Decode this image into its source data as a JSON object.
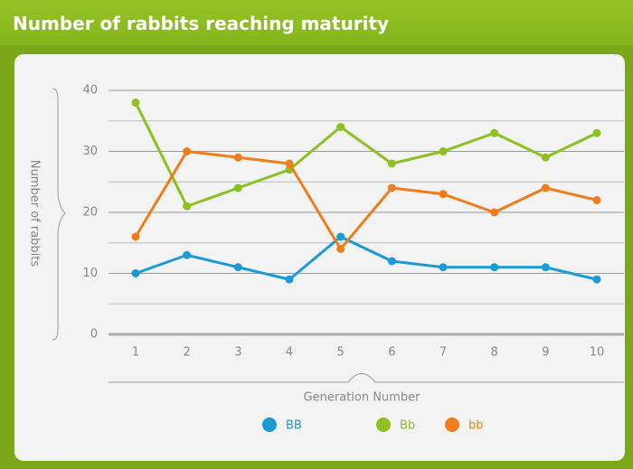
{
  "chart_data": {
    "type": "line",
    "title": "Number of rabbits reaching maturity",
    "x_label": "Generation Number",
    "y_label": "Number of rabbits",
    "categories": [
      "1",
      "2",
      "3",
      "4",
      "5",
      "6",
      "7",
      "8",
      "9",
      "10"
    ],
    "series": [
      {
        "name": "BB",
        "color": "#1a9ad6",
        "values": [
          10,
          13,
          11,
          9,
          16,
          12,
          11,
          11,
          11,
          9
        ]
      },
      {
        "name": "Bb",
        "color": "#8dc021",
        "values": [
          38,
          21,
          24,
          27,
          34,
          28,
          30,
          33,
          29,
          33
        ]
      },
      {
        "name": "bb",
        "color": "#f07d1a",
        "values": [
          16,
          30,
          29,
          28,
          14,
          24,
          23,
          20,
          24,
          22
        ]
      }
    ],
    "ylim": [
      0,
      40
    ],
    "yticks": [
      0,
      10,
      20,
      30,
      40
    ],
    "minor_grid": [
      5,
      15,
      25,
      35
    ],
    "grid": true
  }
}
